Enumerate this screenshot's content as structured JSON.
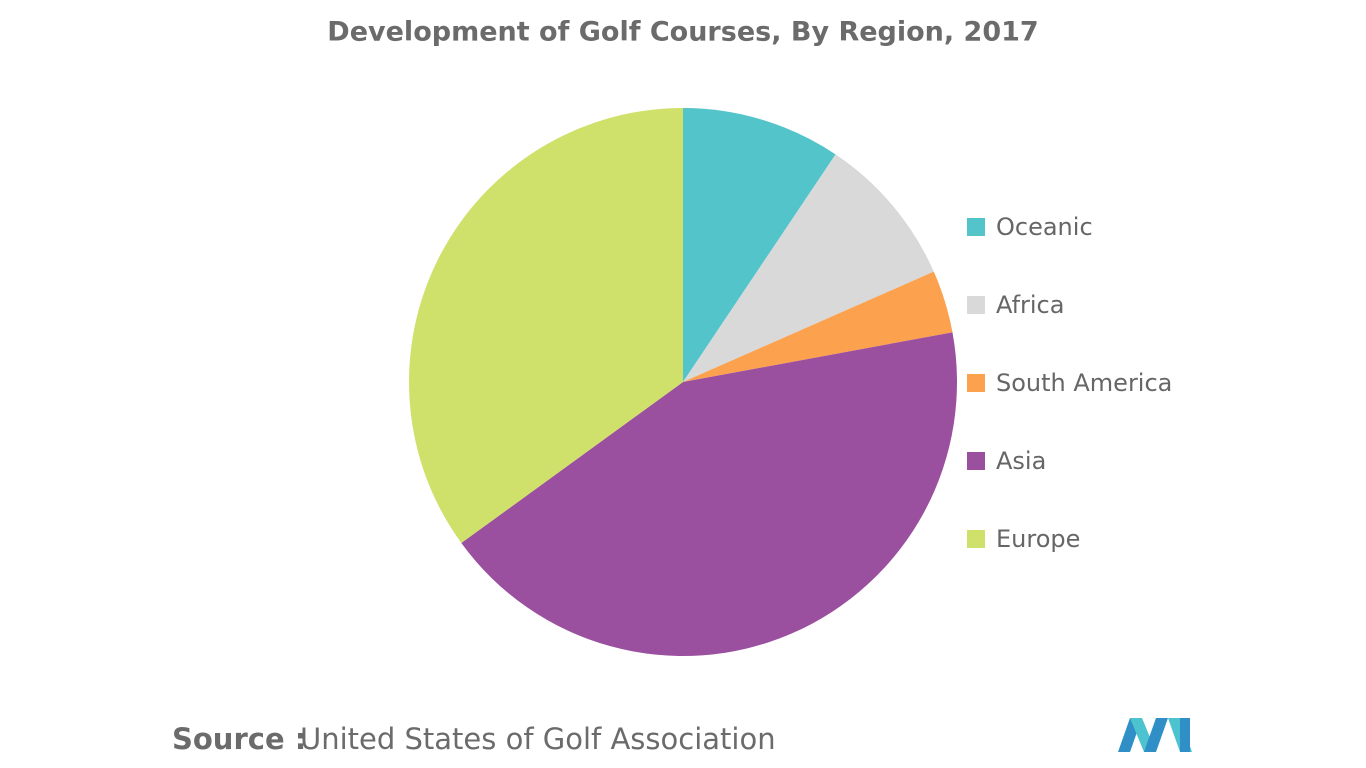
{
  "chart_data": {
    "type": "pie",
    "title": "Development of Golf Courses, By Region, 2017",
    "categories": [
      "Oceanic",
      "Africa",
      "South America",
      "Asia",
      "Europe"
    ],
    "values": [
      9.4,
      9,
      3.7,
      42.9,
      35
    ],
    "colors": [
      "#53c4ca",
      "#d9d9d9",
      "#fca14e",
      "#9b4f9f",
      "#d0e16b"
    ],
    "legend": "right",
    "source_label": "Source :",
    "source": "United States of Golf Association"
  }
}
